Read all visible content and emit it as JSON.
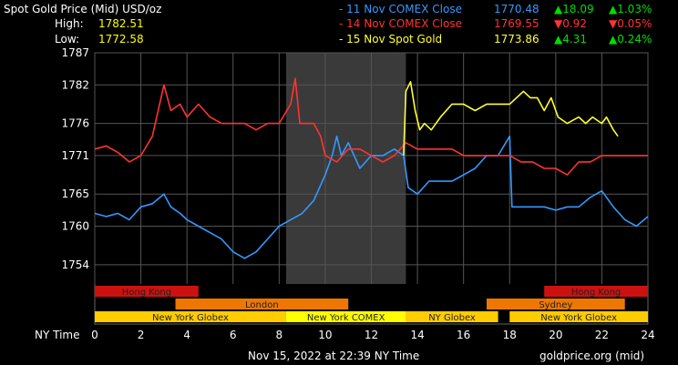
{
  "header": {
    "title": "Spot Gold Price (Mid) USD/oz",
    "high_label": "High:",
    "high_value": "1782.51",
    "low_label": "Low:",
    "low_value": "1772.58"
  },
  "legend": [
    {
      "name": "- 11 Nov COMEX Close",
      "price": "1770.48",
      "change": "▲18.09",
      "pct": "▲1.03%",
      "color": "#3399ff",
      "change_color": "#00dd00"
    },
    {
      "name": "- 14 Nov COMEX Close",
      "price": "1769.55",
      "change": "▼0.92",
      "pct": "▼0.05%",
      "color": "#ff3333",
      "change_color": "#ff3333"
    },
    {
      "name": "- 15 Nov Spot Gold",
      "price": "1773.86",
      "change": "▲4.31",
      "pct": "▲0.24%",
      "color": "#ffff33",
      "change_color": "#00dd00"
    }
  ],
  "footer": {
    "axis_title": "NY Time",
    "timestamp": "Nov 15, 2022 at 22:39 NY Time",
    "source": "goldprice.org (mid)"
  },
  "chart_data": {
    "type": "line",
    "xlim": [
      0,
      24
    ],
    "ylim": [
      1751,
      1787
    ],
    "x_ticks": [
      "0",
      "2",
      "4",
      "6",
      "8",
      "10",
      "12",
      "14",
      "16",
      "18",
      "20",
      "22",
      "24"
    ],
    "y_ticks": [
      "1787",
      "1782",
      "1776",
      "1771",
      "1765",
      "1760",
      "1754"
    ],
    "grid": true,
    "highlight_range": [
      8.3,
      13.5
    ],
    "sessions": [
      {
        "name": "Hong Kong",
        "start": 0,
        "end": 4.5,
        "row": 0,
        "color": "#cc1111"
      },
      {
        "name": "Hong Kong",
        "start": 19.5,
        "end": 24,
        "row": 0,
        "color": "#cc1111"
      },
      {
        "name": "London",
        "start": 3.5,
        "end": 11,
        "row": 1,
        "color": "#ee7700"
      },
      {
        "name": "Sydney",
        "start": 17,
        "end": 23,
        "row": 1,
        "color": "#ee7700"
      },
      {
        "name": "New York Globex",
        "start": 0,
        "end": 8.3,
        "row": 2,
        "color": "#ffcc00"
      },
      {
        "name": "New York COMEX",
        "start": 8.3,
        "end": 13.5,
        "row": 2,
        "color": "#ffff00"
      },
      {
        "name": "NY Globex",
        "start": 13.5,
        "end": 17.5,
        "row": 2,
        "color": "#ffcc00"
      },
      {
        "name": "New York Globex",
        "start": 18,
        "end": 24,
        "row": 2,
        "color": "#ffcc00"
      }
    ],
    "series": [
      {
        "name": "11 Nov COMEX Close",
        "color": "#3399ff",
        "points": [
          [
            0,
            1762
          ],
          [
            0.5,
            1761.5
          ],
          [
            1,
            1762
          ],
          [
            1.5,
            1761
          ],
          [
            2,
            1763
          ],
          [
            2.5,
            1763.5
          ],
          [
            3,
            1765
          ],
          [
            3.3,
            1763
          ],
          [
            3.7,
            1762
          ],
          [
            4,
            1761
          ],
          [
            4.5,
            1760
          ],
          [
            5,
            1759
          ],
          [
            5.5,
            1758
          ],
          [
            6,
            1756
          ],
          [
            6.5,
            1755
          ],
          [
            7,
            1756
          ],
          [
            7.5,
            1758
          ],
          [
            8,
            1760
          ],
          [
            8.5,
            1761
          ],
          [
            9,
            1762
          ],
          [
            9.5,
            1764
          ],
          [
            10,
            1768
          ],
          [
            10.3,
            1771
          ],
          [
            10.5,
            1774
          ],
          [
            10.7,
            1771
          ],
          [
            11,
            1773
          ],
          [
            11.5,
            1769
          ],
          [
            12,
            1771
          ],
          [
            12.5,
            1771
          ],
          [
            13,
            1772
          ],
          [
            13.4,
            1771
          ],
          [
            13.6,
            1766
          ],
          [
            14,
            1765
          ],
          [
            14.5,
            1767
          ],
          [
            15,
            1767
          ],
          [
            15.5,
            1767
          ],
          [
            16,
            1768
          ],
          [
            16.5,
            1769
          ],
          [
            17,
            1771
          ],
          [
            17.5,
            1771
          ],
          [
            18,
            1774
          ],
          [
            18.1,
            1763
          ],
          [
            18.5,
            1763
          ],
          [
            19,
            1763
          ],
          [
            19.5,
            1763
          ],
          [
            20,
            1762.5
          ],
          [
            20.5,
            1763
          ],
          [
            21,
            1763
          ],
          [
            21.5,
            1764.5
          ],
          [
            22,
            1765.5
          ],
          [
            22.5,
            1763
          ],
          [
            23,
            1761
          ],
          [
            23.5,
            1760
          ],
          [
            24,
            1761.5
          ]
        ]
      },
      {
        "name": "14 Nov COMEX Close",
        "color": "#ff3333",
        "points": [
          [
            0,
            1772
          ],
          [
            0.5,
            1772.5
          ],
          [
            1,
            1771.5
          ],
          [
            1.5,
            1770
          ],
          [
            2,
            1771
          ],
          [
            2.5,
            1774
          ],
          [
            3,
            1782
          ],
          [
            3.3,
            1778
          ],
          [
            3.7,
            1779
          ],
          [
            4,
            1777
          ],
          [
            4.5,
            1779
          ],
          [
            5,
            1777
          ],
          [
            5.5,
            1776
          ],
          [
            6,
            1776
          ],
          [
            6.5,
            1776
          ],
          [
            7,
            1775
          ],
          [
            7.5,
            1776
          ],
          [
            8,
            1776
          ],
          [
            8.5,
            1779
          ],
          [
            8.7,
            1783
          ],
          [
            8.9,
            1776
          ],
          [
            9.5,
            1776
          ],
          [
            9.8,
            1774
          ],
          [
            10,
            1771
          ],
          [
            10.5,
            1770
          ],
          [
            11,
            1772
          ],
          [
            11.5,
            1772
          ],
          [
            12,
            1771
          ],
          [
            12.5,
            1770
          ],
          [
            13,
            1771
          ],
          [
            13.5,
            1773
          ],
          [
            14,
            1772
          ],
          [
            14.5,
            1772
          ],
          [
            15,
            1772
          ],
          [
            15.5,
            1772
          ],
          [
            16,
            1771
          ],
          [
            16.5,
            1771
          ],
          [
            17,
            1771
          ],
          [
            17.5,
            1771
          ],
          [
            18,
            1771
          ],
          [
            18.5,
            1770
          ],
          [
            19,
            1770
          ],
          [
            19.5,
            1769
          ],
          [
            20,
            1769
          ],
          [
            20.5,
            1768
          ],
          [
            21,
            1770
          ],
          [
            21.5,
            1770
          ],
          [
            22,
            1771
          ],
          [
            22.5,
            1771
          ],
          [
            23,
            1771
          ],
          [
            23.5,
            1771
          ],
          [
            24,
            1771
          ]
        ]
      },
      {
        "name": "15 Nov Spot Gold",
        "color": "#ffff33",
        "points": [
          [
            13.4,
            1771
          ],
          [
            13.5,
            1781
          ],
          [
            13.7,
            1782.5
          ],
          [
            13.9,
            1778
          ],
          [
            14.1,
            1775
          ],
          [
            14.3,
            1776
          ],
          [
            14.6,
            1775
          ],
          [
            15,
            1777
          ],
          [
            15.5,
            1779
          ],
          [
            16,
            1779
          ],
          [
            16.5,
            1778
          ],
          [
            17,
            1779
          ],
          [
            17.5,
            1779
          ],
          [
            18,
            1779
          ],
          [
            18.3,
            1780
          ],
          [
            18.6,
            1781
          ],
          [
            18.9,
            1780
          ],
          [
            19.2,
            1780
          ],
          [
            19.5,
            1778
          ],
          [
            19.8,
            1780
          ],
          [
            20.1,
            1777
          ],
          [
            20.5,
            1776
          ],
          [
            21,
            1777
          ],
          [
            21.3,
            1776
          ],
          [
            21.6,
            1777
          ],
          [
            22,
            1776
          ],
          [
            22.2,
            1777
          ],
          [
            22.5,
            1775
          ],
          [
            22.7,
            1774
          ]
        ]
      }
    ]
  }
}
